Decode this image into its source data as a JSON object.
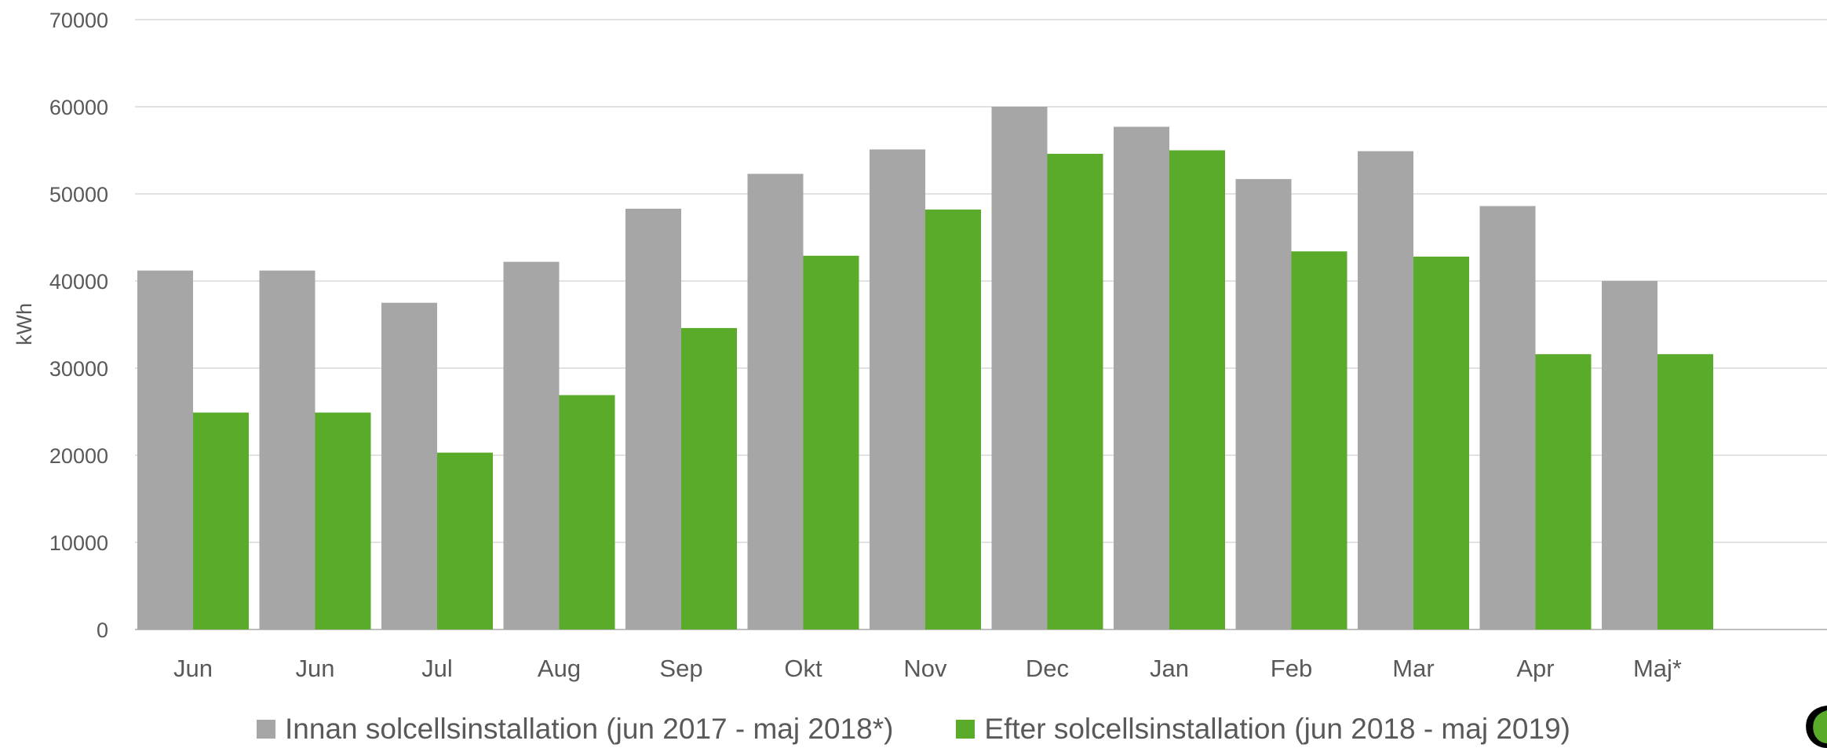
{
  "chart_data": {
    "type": "bar",
    "title": "",
    "xlabel": "",
    "ylabel": "kWh",
    "ylim": [
      0,
      70000
    ],
    "yticks": [
      0,
      10000,
      20000,
      30000,
      40000,
      50000,
      60000,
      70000
    ],
    "grid": true,
    "legend_position": "bottom",
    "categories": [
      "Jun",
      "Jun",
      "Jul",
      "Aug",
      "Sep",
      "Okt",
      "Nov",
      "Dec",
      "Jan",
      "Feb",
      "Mar",
      "Apr",
      "Maj*"
    ],
    "series": [
      {
        "name": "Innan solcellsinstallation (jun 2017 - maj 2018*)",
        "color": "#a6a6a6",
        "values": [
          41200,
          41200,
          37500,
          42200,
          48300,
          52300,
          55100,
          60000,
          57700,
          51700,
          54900,
          48600,
          40000
        ]
      },
      {
        "name": "Efter solcellsinstallation (jun 2018 - maj 2019)",
        "color": "#5aab2a",
        "values": [
          24900,
          24900,
          20300,
          26900,
          34600,
          42900,
          48200,
          54600,
          55000,
          43400,
          42800,
          31600,
          31600
        ]
      }
    ]
  }
}
